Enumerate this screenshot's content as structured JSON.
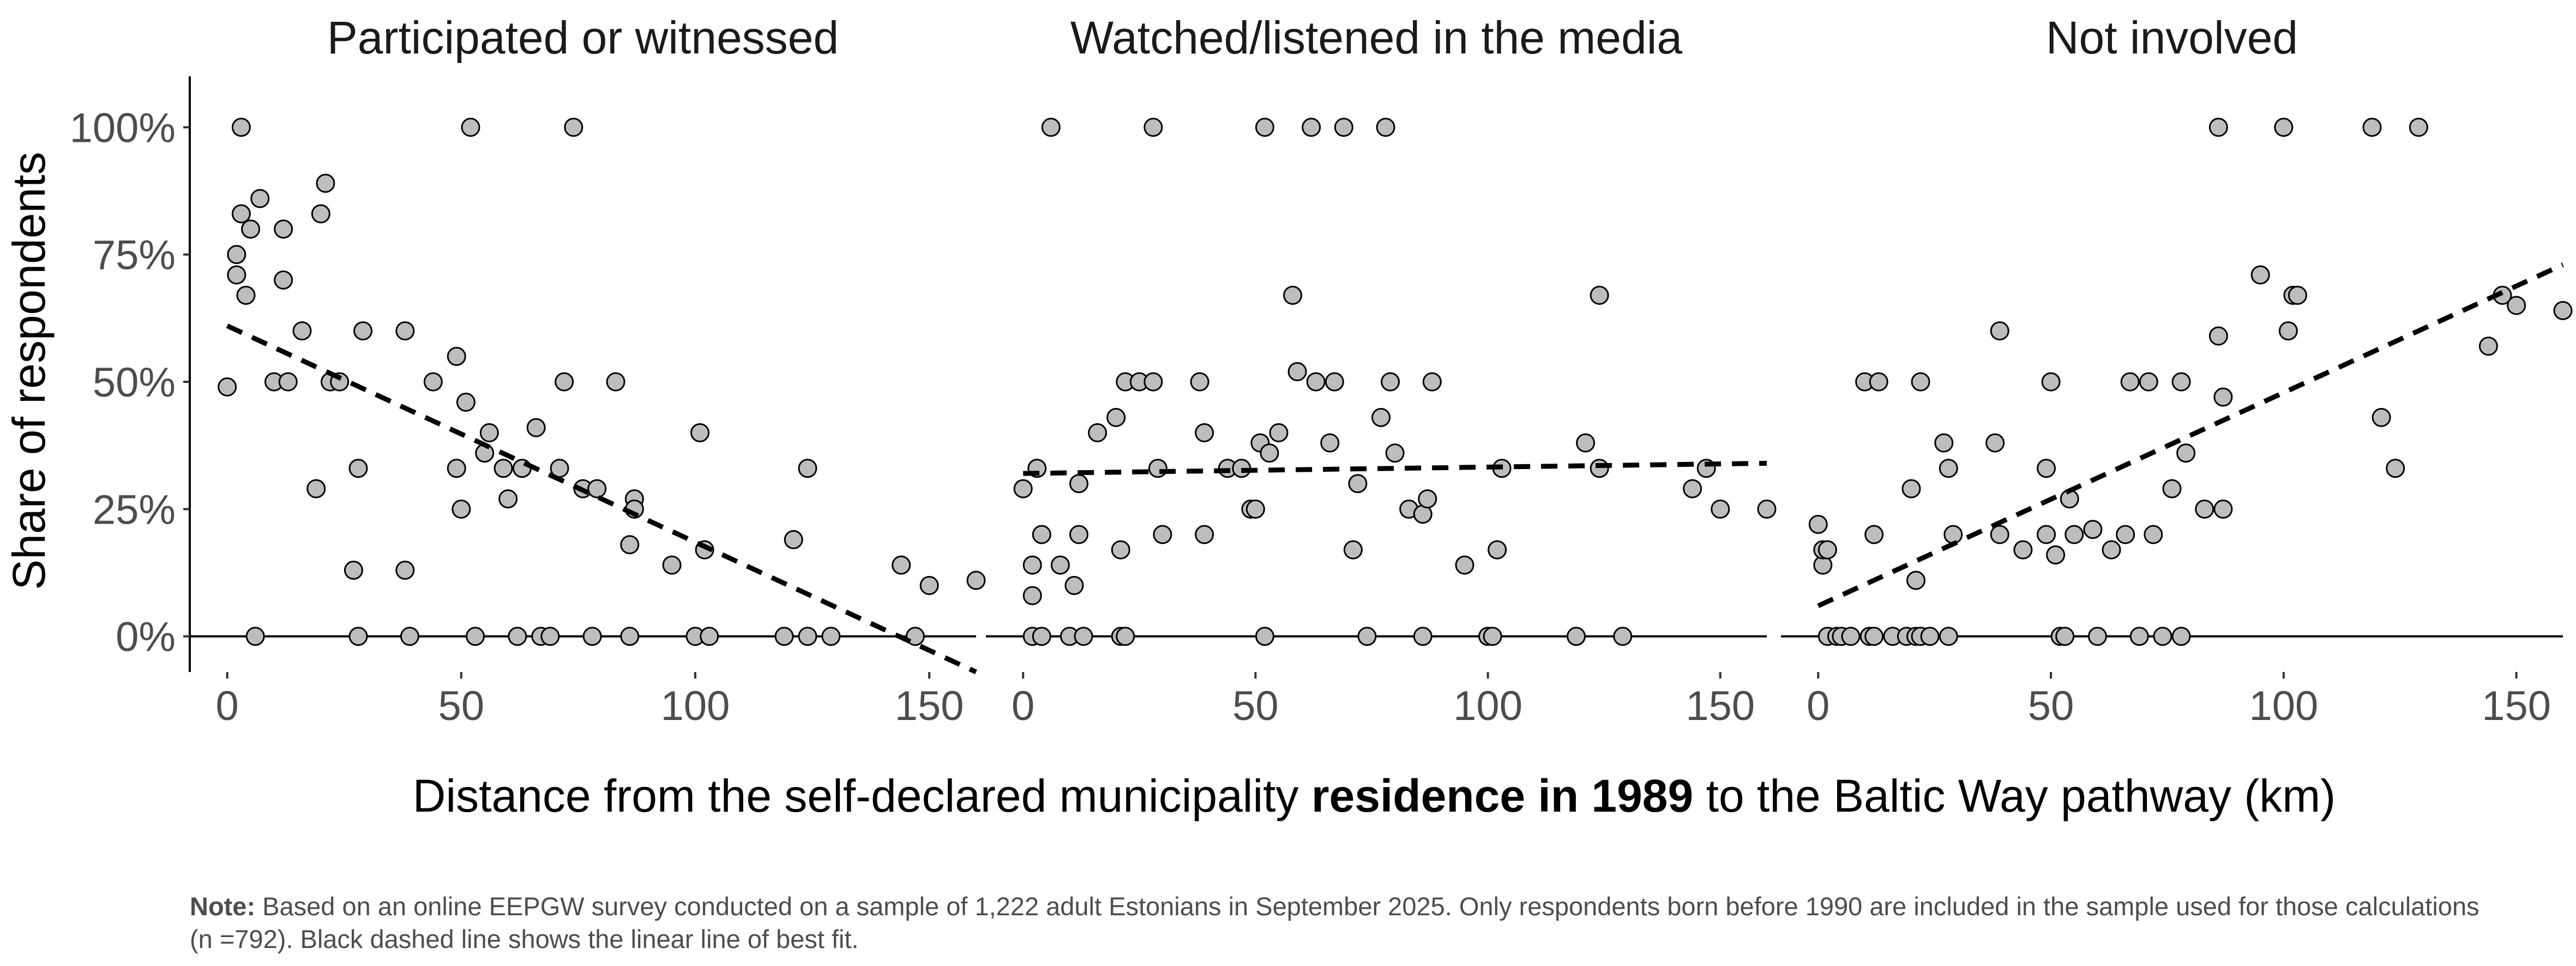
{
  "chart_data": {
    "type": "scatter",
    "ylabel": "Share of respondents",
    "xlabel_parts": {
      "pre": "Distance from the self-declared municipality ",
      "bold": "residence in 1989",
      "post": " to the Baltic Way pathway (km)"
    },
    "x_ticks": [
      "0",
      "50",
      "100",
      "150"
    ],
    "y_ticks": [
      "0%",
      "25%",
      "50%",
      "75%",
      "100%"
    ],
    "xlim": [
      -8,
      160
    ],
    "ylim": [
      -0.07,
      1.1
    ],
    "trendline": "dashed linear best fit",
    "marker_color": "#bdbdbd",
    "panels": [
      {
        "title": "Participated or witnessed",
        "fit": [
          [
            0,
            0.61
          ],
          [
            160,
            -0.07
          ]
        ],
        "points": [
          [
            0,
            0.49
          ],
          [
            2,
            0.71
          ],
          [
            2,
            0.75
          ],
          [
            3,
            0.83
          ],
          [
            3,
            1.0
          ],
          [
            4,
            0.67
          ],
          [
            5,
            0.8
          ],
          [
            6,
            0
          ],
          [
            7,
            0.86
          ],
          [
            10,
            0.5
          ],
          [
            12,
            0.7
          ],
          [
            12,
            0.8
          ],
          [
            13,
            0.5
          ],
          [
            16,
            0.6
          ],
          [
            19,
            0.29
          ],
          [
            20,
            0.83
          ],
          [
            21,
            0.89
          ],
          [
            22,
            0.5
          ],
          [
            24,
            0.5
          ],
          [
            27,
            0.13
          ],
          [
            28,
            0
          ],
          [
            28,
            0.33
          ],
          [
            29,
            0.6
          ],
          [
            38,
            0.13
          ],
          [
            38,
            0.6
          ],
          [
            39,
            0
          ],
          [
            44,
            0.5
          ],
          [
            49,
            0.55
          ],
          [
            49,
            0.33
          ],
          [
            50,
            0.25
          ],
          [
            51,
            0.46
          ],
          [
            52,
            1.0
          ],
          [
            53,
            0
          ],
          [
            55,
            0.36
          ],
          [
            56,
            0.4
          ],
          [
            59,
            0.33
          ],
          [
            60,
            0.27
          ],
          [
            62,
            0
          ],
          [
            63,
            0.33
          ],
          [
            66,
            0.41
          ],
          [
            67,
            0
          ],
          [
            69,
            0
          ],
          [
            71,
            0.33
          ],
          [
            72,
            0.5
          ],
          [
            74,
            1.0
          ],
          [
            76,
            0.29
          ],
          [
            78,
            0
          ],
          [
            79,
            0.29
          ],
          [
            83,
            0.5
          ],
          [
            86,
            0
          ],
          [
            86,
            0.18
          ],
          [
            87,
            0.27
          ],
          [
            87,
            0.25
          ],
          [
            95,
            0.14
          ],
          [
            100,
            0
          ],
          [
            101,
            0.4
          ],
          [
            102,
            0.17
          ],
          [
            103,
            0
          ],
          [
            119,
            0
          ],
          [
            121,
            0.19
          ],
          [
            124,
            0
          ],
          [
            124,
            0.33
          ],
          [
            129,
            0
          ],
          [
            144,
            0.14
          ],
          [
            147,
            0
          ],
          [
            150,
            0.1
          ],
          [
            160,
            0.11
          ]
        ]
      },
      {
        "title": "Watched/listened in the media",
        "fit": [
          [
            0,
            0.32
          ],
          [
            160,
            0.34
          ]
        ],
        "points": [
          [
            0,
            0.29
          ],
          [
            2,
            0.14
          ],
          [
            2,
            0.08
          ],
          [
            2,
            0
          ],
          [
            3,
            0.33
          ],
          [
            4,
            0
          ],
          [
            4,
            0.2
          ],
          [
            6,
            1.0
          ],
          [
            8,
            0.14
          ],
          [
            10,
            0
          ],
          [
            11,
            0.1
          ],
          [
            12,
            0.3
          ],
          [
            12,
            0.2
          ],
          [
            13,
            0
          ],
          [
            16,
            0.4
          ],
          [
            20,
            0.43
          ],
          [
            21,
            0
          ],
          [
            21,
            0.17
          ],
          [
            22,
            0
          ],
          [
            22,
            0.5
          ],
          [
            25,
            0.5
          ],
          [
            28,
            0.5
          ],
          [
            28,
            1.0
          ],
          [
            29,
            0.33
          ],
          [
            30,
            0.2
          ],
          [
            38,
            0.5
          ],
          [
            39,
            0.2
          ],
          [
            39,
            0.4
          ],
          [
            44,
            0.33
          ],
          [
            47,
            0.33
          ],
          [
            49,
            0.25
          ],
          [
            50,
            0.25
          ],
          [
            51,
            0.38
          ],
          [
            52,
            1.0
          ],
          [
            52,
            0
          ],
          [
            53,
            0.36
          ],
          [
            55,
            0.4
          ],
          [
            58,
            0.67
          ],
          [
            59,
            0.52
          ],
          [
            62,
            1.0
          ],
          [
            63,
            0.5
          ],
          [
            66,
            0.38
          ],
          [
            67,
            0.5
          ],
          [
            69,
            1.0
          ],
          [
            71,
            0.17
          ],
          [
            72,
            0.3
          ],
          [
            74,
            0
          ],
          [
            77,
            0.43
          ],
          [
            78,
            1.0
          ],
          [
            79,
            0.5
          ],
          [
            80,
            0.36
          ],
          [
            83,
            0.25
          ],
          [
            86,
            0
          ],
          [
            86,
            0.24
          ],
          [
            87,
            0.27
          ],
          [
            88,
            0.5
          ],
          [
            95,
            0.14
          ],
          [
            100,
            0
          ],
          [
            101,
            0
          ],
          [
            102,
            0.17
          ],
          [
            103,
            0.33
          ],
          [
            119,
            0
          ],
          [
            121,
            0.38
          ],
          [
            124,
            0.33
          ],
          [
            124,
            0.67
          ],
          [
            129,
            0
          ],
          [
            144,
            0.29
          ],
          [
            147,
            0.33
          ],
          [
            150,
            0.25
          ],
          [
            160,
            0.25
          ]
        ]
      },
      {
        "title": "Not involved",
        "fit": [
          [
            0,
            0.06
          ],
          [
            160,
            0.73
          ]
        ],
        "points": [
          [
            0,
            0.22
          ],
          [
            1,
            0.14
          ],
          [
            1,
            0.17
          ],
          [
            2,
            0
          ],
          [
            2,
            0.17
          ],
          [
            4,
            0
          ],
          [
            5,
            0
          ],
          [
            7,
            0
          ],
          [
            10,
            0.5
          ],
          [
            11,
            0
          ],
          [
            12,
            0.2
          ],
          [
            12,
            0
          ],
          [
            13,
            0.5
          ],
          [
            16,
            0
          ],
          [
            19,
            0
          ],
          [
            20,
            0.29
          ],
          [
            21,
            0.11
          ],
          [
            21,
            0
          ],
          [
            22,
            0.5
          ],
          [
            22,
            0
          ],
          [
            24,
            0
          ],
          [
            27,
            0.38
          ],
          [
            28,
            0
          ],
          [
            28,
            0.33
          ],
          [
            29,
            0.2
          ],
          [
            38,
            0.38
          ],
          [
            39,
            0.6
          ],
          [
            39,
            0.2
          ],
          [
            44,
            0.17
          ],
          [
            49,
            0.2
          ],
          [
            49,
            0.33
          ],
          [
            50,
            0.5
          ],
          [
            51,
            0.16
          ],
          [
            52,
            0
          ],
          [
            53,
            0
          ],
          [
            54,
            0.27
          ],
          [
            55,
            0.2
          ],
          [
            59,
            0.21
          ],
          [
            60,
            0
          ],
          [
            63,
            0.17
          ],
          [
            66,
            0.2
          ],
          [
            67,
            0.5
          ],
          [
            69,
            0
          ],
          [
            71,
            0.5
          ],
          [
            72,
            0.2
          ],
          [
            74,
            0
          ],
          [
            76,
            0.29
          ],
          [
            78,
            0.5
          ],
          [
            78,
            0
          ],
          [
            79,
            0.36
          ],
          [
            83,
            0.25
          ],
          [
            86,
            0.59
          ],
          [
            86,
            1.0
          ],
          [
            87,
            0.47
          ],
          [
            87,
            0.25
          ],
          [
            95,
            0.71
          ],
          [
            100,
            1.0
          ],
          [
            101,
            0.6
          ],
          [
            102,
            0.67
          ],
          [
            103,
            0.67
          ],
          [
            119,
            1.0
          ],
          [
            121,
            0.43
          ],
          [
            124,
            0.33
          ],
          [
            129,
            1.0
          ],
          [
            144,
            0.57
          ],
          [
            147,
            0.67
          ],
          [
            150,
            0.65
          ],
          [
            160,
            0.64
          ]
        ]
      }
    ]
  },
  "note": {
    "label": "Note:",
    "text": " Based on an online EEPGW survey conducted on a sample of 1,222 adult Estonians in September 2025. Only respondents born before 1990 are included in the sample used for those calculations (n =792). Black dashed line shows the linear line of best fit."
  }
}
